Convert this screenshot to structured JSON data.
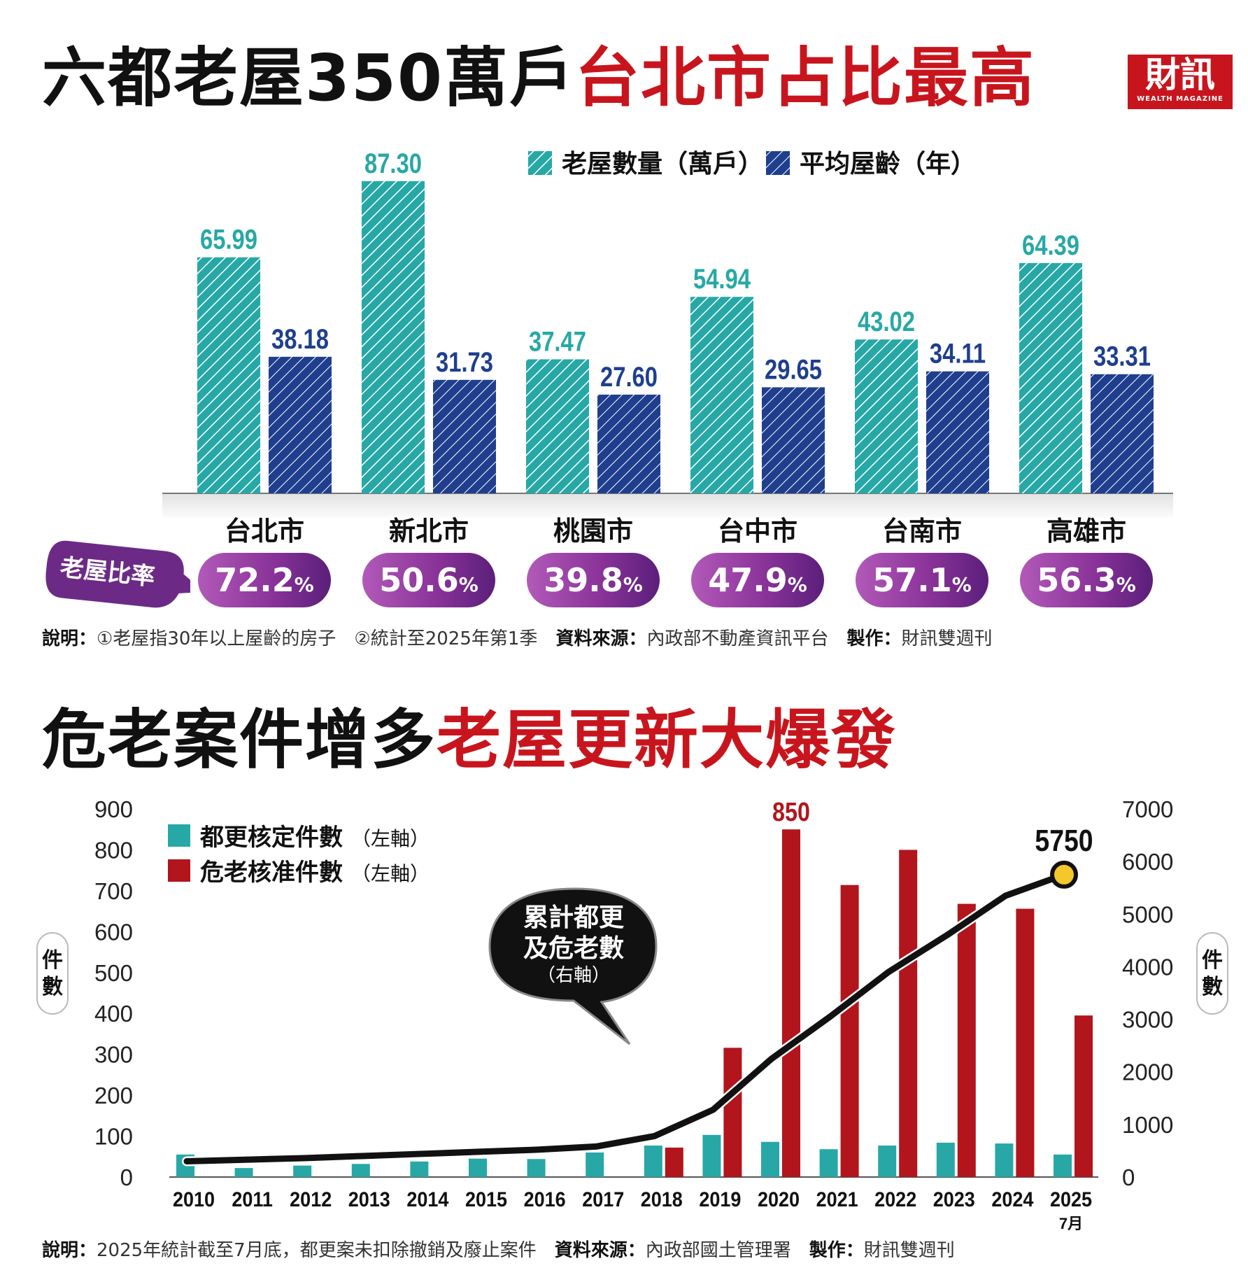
{
  "header": {
    "title_black": "六都老屋350萬戶",
    "title_red": "台北市占比最高",
    "logo_text": "財訊",
    "logo_sub": "WEALTH MAGAZINE"
  },
  "chart1_note": {
    "label1": "說明：",
    "text1": "①老屋指30年以上屋齡的房子　②統計至2025年第1季　",
    "label2": "資料來源：",
    "text2": "內政部不動產資訊平台　",
    "label3": "製作：",
    "text3": "財訊雙週刊"
  },
  "ratio_label": "老屋比率",
  "ratios": [
    {
      "value": "72.2",
      "unit": "%"
    },
    {
      "value": "50.6",
      "unit": "%"
    },
    {
      "value": "39.8",
      "unit": "%"
    },
    {
      "value": "47.9",
      "unit": "%"
    },
    {
      "value": "57.1",
      "unit": "%"
    },
    {
      "value": "56.3",
      "unit": "%"
    }
  ],
  "section2": {
    "title_black": "危老案件增多",
    "title_red": "老屋更新大爆發",
    "left_axis_label": "件數",
    "right_axis_label": "件數",
    "callout_line1": "累計都更",
    "callout_line2": "及危老數",
    "callout_line3": "（右軸）",
    "last_month_label": "7月"
  },
  "chart2_note": {
    "label1": "說明：",
    "text1": "2025年統計截至7月底，都更案未扣除撤銷及廢止案件　",
    "label2": "資料來源：",
    "text2": "內政部國土管理署　",
    "label3": "製作：",
    "text3": "財訊雙週刊"
  },
  "colors": {
    "teal": "#27a8a6",
    "navy": "#1f3f8e",
    "red": "#c8151d",
    "dark_red": "#b2151c",
    "yellow": "#f4c82a",
    "purple": "#8a3399"
  },
  "chart_data": [
    {
      "type": "bar",
      "categories": [
        "台北市",
        "新北市",
        "桃園市",
        "台中市",
        "台南市",
        "高雄市"
      ],
      "series": [
        {
          "name": "老屋數量（萬戶）",
          "values": [
            65.99,
            87.3,
            37.47,
            54.94,
            43.02,
            64.39
          ],
          "labels": [
            "65.99",
            "87.30",
            "37.47",
            "54.94",
            "43.02",
            "64.39"
          ]
        },
        {
          "name": "平均屋齡（年）",
          "values": [
            38.18,
            31.73,
            27.6,
            29.65,
            34.11,
            33.31
          ],
          "labels": [
            "38.18",
            "31.73",
            "27.60",
            "29.65",
            "34.11",
            "33.31"
          ]
        }
      ],
      "ylim": [
        0,
        90
      ],
      "legend": "top-right",
      "grid": false
    },
    {
      "type": "bar",
      "categories": [
        "2010",
        "2011",
        "2012",
        "2013",
        "2014",
        "2015",
        "2016",
        "2017",
        "2018",
        "2019",
        "2020",
        "2021",
        "2022",
        "2023",
        "2024",
        "2025"
      ],
      "series": [
        {
          "name": "都更核定件數",
          "axis_note": "（左軸）",
          "axis": "left",
          "values": [
            55,
            22,
            28,
            32,
            38,
            45,
            44,
            60,
            77,
            103,
            86,
            68,
            77,
            84,
            82,
            55
          ]
        },
        {
          "name": "危老核准件數",
          "axis_note": "（左軸）",
          "axis": "left",
          "values": [
            0,
            0,
            0,
            0,
            0,
            0,
            0,
            0,
            72,
            316,
            850,
            714,
            800,
            668,
            656,
            395
          ]
        },
        {
          "name": "累計都更及危老數",
          "axis_note": "（右軸）",
          "axis": "right",
          "type": "line",
          "values": [
            300,
            330,
            360,
            400,
            440,
            480,
            520,
            580,
            780,
            1280,
            2250,
            3050,
            3900,
            4600,
            5350,
            5750
          ]
        }
      ],
      "ylim_left": [
        0,
        900
      ],
      "ylim_right": [
        0,
        7000
      ],
      "yticks_left": [
        "0",
        "100",
        "200",
        "300",
        "400",
        "500",
        "600",
        "700",
        "800",
        "900"
      ],
      "yticks_right": [
        "0",
        "1000",
        "2000",
        "3000",
        "4000",
        "5000",
        "6000",
        "7000"
      ],
      "annotations": [
        {
          "text": "850",
          "series": "危老核准件數",
          "x": "2020"
        },
        {
          "text": "5750",
          "series": "累計都更及危老數",
          "x": "2025"
        }
      ],
      "legend": "top-left",
      "grid": false
    }
  ]
}
